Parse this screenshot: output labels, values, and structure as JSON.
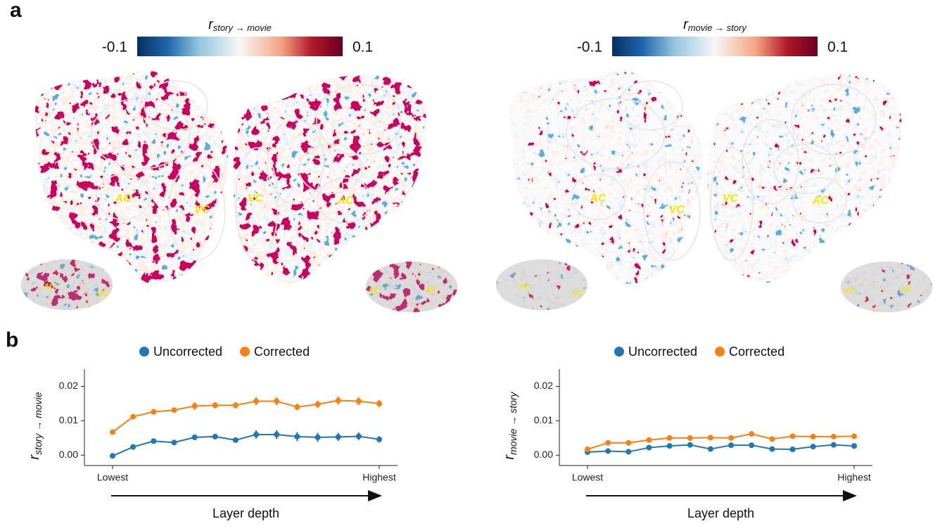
{
  "panel_a": {
    "label": "a",
    "maps": [
      {
        "colorbar": {
          "label": "r",
          "label_sub": "story → movie",
          "lim": [
            -0.1,
            0.1
          ],
          "ticks": [
            -0.1,
            0.1
          ]
        },
        "flatmap_labels": [
          "AC",
          "VC",
          "VC",
          "AC"
        ],
        "inset_labels": [
          "AC",
          "VC",
          "VC",
          "AC"
        ]
      },
      {
        "colorbar": {
          "label": "r",
          "label_sub": "movie → story",
          "lim": [
            -0.1,
            0.1
          ],
          "ticks": [
            -0.1,
            0.1
          ]
        },
        "flatmap_labels": [
          "AC",
          "VC",
          "VC",
          "AC"
        ],
        "inset_labels": [
          "AC",
          "VC",
          "VC",
          "AC"
        ]
      }
    ]
  },
  "panel_b": {
    "label": "b"
  },
  "chart_data": [
    {
      "type": "line",
      "ylabel": "r",
      "ylabel_sub": "story → movie",
      "xlabel": "Layer depth",
      "categories": [
        "Lowest",
        null,
        null,
        null,
        null,
        null,
        null,
        null,
        null,
        null,
        null,
        null,
        null,
        "Highest"
      ],
      "ylim": [
        -0.003,
        0.025
      ],
      "yticks": [
        {
          "value": 0,
          "label": "0.00"
        },
        0.01,
        0.02
      ],
      "series": [
        {
          "name": "Uncorrected",
          "color": "#1f77b4",
          "values": [
            -0.0002,
            0.0024,
            0.0041,
            0.0037,
            0.0052,
            0.0054,
            0.0044,
            0.006,
            0.006,
            0.0054,
            0.0052,
            0.0053,
            0.0055,
            0.0046
          ],
          "errors": [
            0.0004,
            0.0005,
            0.0006,
            0.0006,
            0.0008,
            0.0006,
            0.0006,
            0.0012,
            0.0013,
            0.0013,
            0.0013,
            0.0012,
            0.0011,
            0.0009
          ]
        },
        {
          "name": "Corrected",
          "color": "#ff7f0e",
          "values": [
            0.0067,
            0.0112,
            0.0126,
            0.0131,
            0.0143,
            0.0145,
            0.0145,
            0.0157,
            0.0157,
            0.014,
            0.0148,
            0.0159,
            0.0157,
            0.015
          ],
          "errors": [
            0.0004,
            0.0006,
            0.0007,
            0.0007,
            0.0011,
            0.0009,
            0.0009,
            0.0012,
            0.0012,
            0.001,
            0.0011,
            0.0012,
            0.0011,
            0.001
          ]
        }
      ]
    },
    {
      "type": "line",
      "ylabel": "r",
      "ylabel_sub": "movie → story",
      "xlabel": "Layer depth",
      "categories": [
        "Lowest",
        null,
        null,
        null,
        null,
        null,
        null,
        null,
        null,
        null,
        null,
        null,
        null,
        "Highest"
      ],
      "ylim": [
        -0.003,
        0.025
      ],
      "yticks": [
        {
          "value": 0,
          "label": "0.00"
        },
        0.01,
        0.02
      ],
      "series": [
        {
          "name": "Uncorrected",
          "color": "#1f77b4",
          "values": [
            0.0009,
            0.0012,
            0.001,
            0.0022,
            0.0027,
            0.003,
            0.0018,
            0.0029,
            0.0029,
            0.0018,
            0.0017,
            0.0025,
            0.003,
            0.0027
          ]
        },
        {
          "name": "Corrected",
          "color": "#ff7f0e",
          "values": [
            0.0017,
            0.0036,
            0.0036,
            0.0044,
            0.005,
            0.005,
            0.0051,
            0.005,
            0.0062,
            0.0047,
            0.0055,
            0.0054,
            0.0054,
            0.0055
          ]
        }
      ]
    }
  ]
}
